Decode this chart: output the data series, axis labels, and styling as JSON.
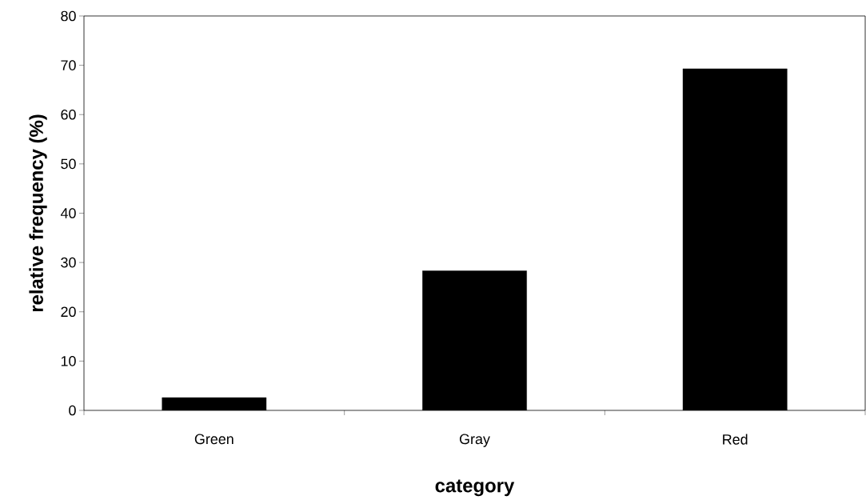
{
  "chart_data": {
    "type": "bar",
    "xlabel": "category",
    "ylabel": "relative frequency (%)",
    "categories": [
      "Green",
      "Gray",
      "Red"
    ],
    "values": [
      2.6,
      28.3,
      69.3
    ],
    "color": "#000000",
    "ylim": [
      0,
      80
    ],
    "yticks": [
      0,
      10,
      20,
      30,
      40,
      50,
      60,
      70,
      80
    ],
    "grid": false
  }
}
